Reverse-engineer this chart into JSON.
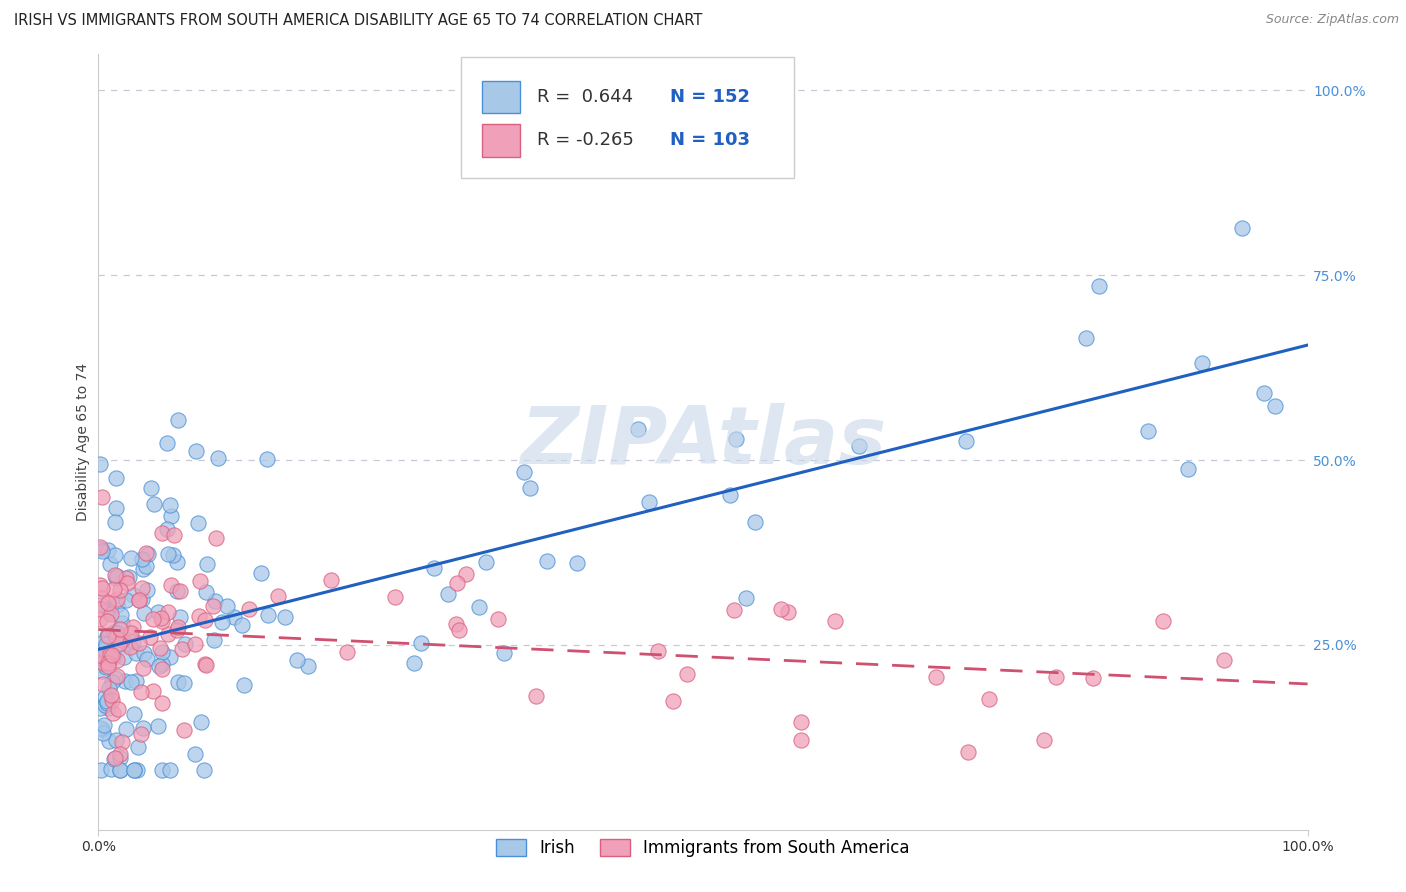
{
  "title": "IRISH VS IMMIGRANTS FROM SOUTH AMERICA DISABILITY AGE 65 TO 74 CORRELATION CHART",
  "source": "Source: ZipAtlas.com",
  "ylabel": "Disability Age 65 to 74",
  "legend_label1": "Irish",
  "legend_label2": "Immigrants from South America",
  "R1": 0.644,
  "N1": 152,
  "R2": -0.265,
  "N2": 103,
  "blue_scatter_face": "#a8c8e8",
  "blue_scatter_edge": "#4a90d9",
  "pink_scatter_face": "#f0a0b8",
  "pink_scatter_edge": "#d96080",
  "blue_line_color": "#2060c0",
  "pink_line_color": "#d05070",
  "background_color": "#ffffff",
  "grid_color": "#c8c8d8",
  "title_fontsize": 10.5,
  "axis_label_fontsize": 10,
  "tick_fontsize": 10,
  "right_tick_color": "#4a90d9",
  "annotation_color": "#2060c0",
  "watermark_color": "#c8d8e8",
  "watermark_alpha": 0.6
}
